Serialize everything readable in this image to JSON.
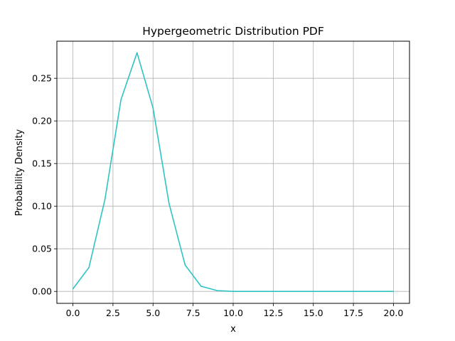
{
  "chart_data": {
    "type": "line",
    "title": "Hypergeometric Distribution PDF",
    "xlabel": "x",
    "ylabel": "Probability Density",
    "xlim": [
      -1.0,
      21.0
    ],
    "ylim": [
      -0.014,
      0.2935
    ],
    "grid": true,
    "x_ticks": [
      0.0,
      2.5,
      5.0,
      7.5,
      10.0,
      12.5,
      15.0,
      17.5,
      20.0
    ],
    "x_tick_labels": [
      "0.0",
      "2.5",
      "5.0",
      "7.5",
      "10.0",
      "12.5",
      "15.0",
      "17.5",
      "20.0"
    ],
    "y_ticks": [
      0.0,
      0.05,
      0.1,
      0.15,
      0.2,
      0.25
    ],
    "y_tick_labels": [
      "0.00",
      "0.05",
      "0.10",
      "0.15",
      "0.20",
      "0.25"
    ],
    "series": [
      {
        "color": "#2ec4c4",
        "x": [
          0,
          1,
          2,
          3,
          4,
          5,
          6,
          7,
          8,
          9,
          10,
          11,
          12,
          13,
          14,
          15,
          16,
          17,
          18,
          19,
          20
        ],
        "values": [
          0.003,
          0.028,
          0.108,
          0.225,
          0.28,
          0.215,
          0.103,
          0.031,
          0.006,
          0.001,
          0.0,
          0.0,
          0.0,
          0.0,
          0.0,
          0.0,
          0.0,
          0.0,
          0.0,
          0.0,
          0.0
        ]
      }
    ]
  }
}
